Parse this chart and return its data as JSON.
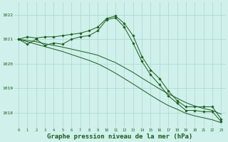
{
  "bg_color": "#cff0eb",
  "grid_color": "#a8d8d0",
  "line_color": "#1a5c1a",
  "xlabel": "Graphe pression niveau de la mer (hPa)",
  "xlabel_fontsize": 6.5,
  "ylabel_ticks": [
    1018,
    1019,
    1020,
    1021,
    1022
  ],
  "xlim": [
    -0.5,
    23.5
  ],
  "ylim": [
    1017.4,
    1022.5
  ],
  "x_ticks": [
    0,
    1,
    2,
    3,
    4,
    5,
    6,
    7,
    8,
    9,
    10,
    11,
    12,
    13,
    14,
    15,
    16,
    17,
    18,
    19,
    20,
    21,
    22,
    23
  ],
  "series1_marked": {
    "x": [
      0,
      1,
      2,
      3,
      4,
      5,
      6,
      7,
      8,
      9,
      10,
      11,
      12,
      13,
      14,
      15,
      16,
      17,
      18,
      19,
      20,
      21,
      22,
      23
    ],
    "y": [
      1021.0,
      1021.1,
      1021.05,
      1021.1,
      1021.1,
      1021.15,
      1021.2,
      1021.25,
      1021.35,
      1021.5,
      1021.85,
      1021.95,
      1021.65,
      1021.15,
      1020.3,
      1019.75,
      1019.4,
      1018.9,
      1018.5,
      1018.25,
      1018.25,
      1018.25,
      1018.25,
      1017.75
    ]
  },
  "series2_marked": {
    "x": [
      0,
      1,
      2,
      3,
      4,
      5,
      6,
      7,
      8,
      9,
      10,
      11,
      12,
      13,
      14,
      15,
      16,
      17,
      18,
      19,
      20,
      21,
      22,
      23
    ],
    "y": [
      1021.0,
      1020.8,
      1021.0,
      1020.75,
      1020.85,
      1020.8,
      1021.0,
      1021.1,
      1021.15,
      1021.35,
      1021.8,
      1021.88,
      1021.5,
      1020.85,
      1020.1,
      1019.55,
      1019.15,
      1018.7,
      1018.4,
      1018.1,
      1018.1,
      1018.05,
      1018.05,
      1017.65
    ]
  },
  "series3_smooth": {
    "x": [
      0,
      1,
      2,
      3,
      4,
      5,
      6,
      7,
      8,
      9,
      10,
      11,
      12,
      13,
      14,
      15,
      16,
      17,
      18,
      19,
      20,
      21,
      22,
      23
    ],
    "y": [
      1021.0,
      1020.95,
      1020.9,
      1020.82,
      1020.75,
      1020.68,
      1020.6,
      1020.52,
      1020.44,
      1020.35,
      1020.2,
      1020.05,
      1019.85,
      1019.65,
      1019.42,
      1019.2,
      1018.98,
      1018.78,
      1018.6,
      1018.42,
      1018.28,
      1018.18,
      1018.1,
      1017.95
    ]
  },
  "series4_smooth": {
    "x": [
      0,
      1,
      2,
      3,
      4,
      5,
      6,
      7,
      8,
      9,
      10,
      11,
      12,
      13,
      14,
      15,
      16,
      17,
      18,
      19,
      20,
      21,
      22,
      23
    ],
    "y": [
      1021.0,
      1020.9,
      1020.8,
      1020.7,
      1020.6,
      1020.5,
      1020.38,
      1020.26,
      1020.14,
      1020.0,
      1019.82,
      1019.62,
      1019.4,
      1019.18,
      1018.95,
      1018.72,
      1018.5,
      1018.3,
      1018.15,
      1017.98,
      1017.88,
      1017.8,
      1017.72,
      1017.6
    ]
  }
}
